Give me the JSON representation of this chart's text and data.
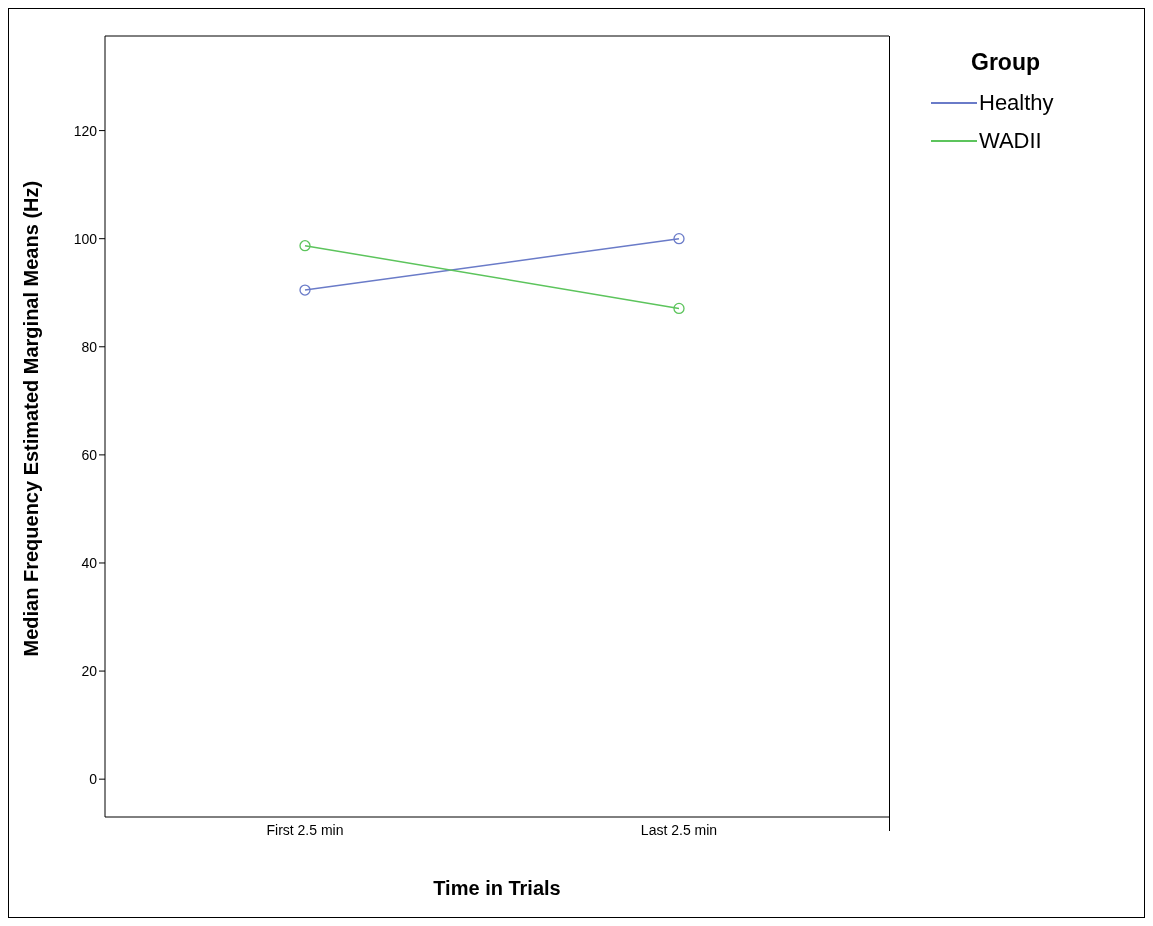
{
  "chart_data": {
    "type": "line",
    "xlabel": "Time in Trials",
    "ylabel": "Median Frequency Estimated Marginal Means (Hz)",
    "legend_title": "Group",
    "categories": [
      "First 2.5 min",
      "Last 2.5 min"
    ],
    "series": [
      {
        "name": "Healthy",
        "color": "#6a7bc8",
        "values": [
          90.5,
          100.0
        ]
      },
      {
        "name": "WADII",
        "color": "#5cc45c",
        "values": [
          98.7,
          87.1
        ]
      }
    ],
    "ylim": [
      -7,
      137.5
    ],
    "yticks": [
      0,
      20,
      40,
      60,
      80,
      100,
      120
    ],
    "grid": false,
    "legend": "top right",
    "marker": "circle",
    "line_style": "solid"
  }
}
